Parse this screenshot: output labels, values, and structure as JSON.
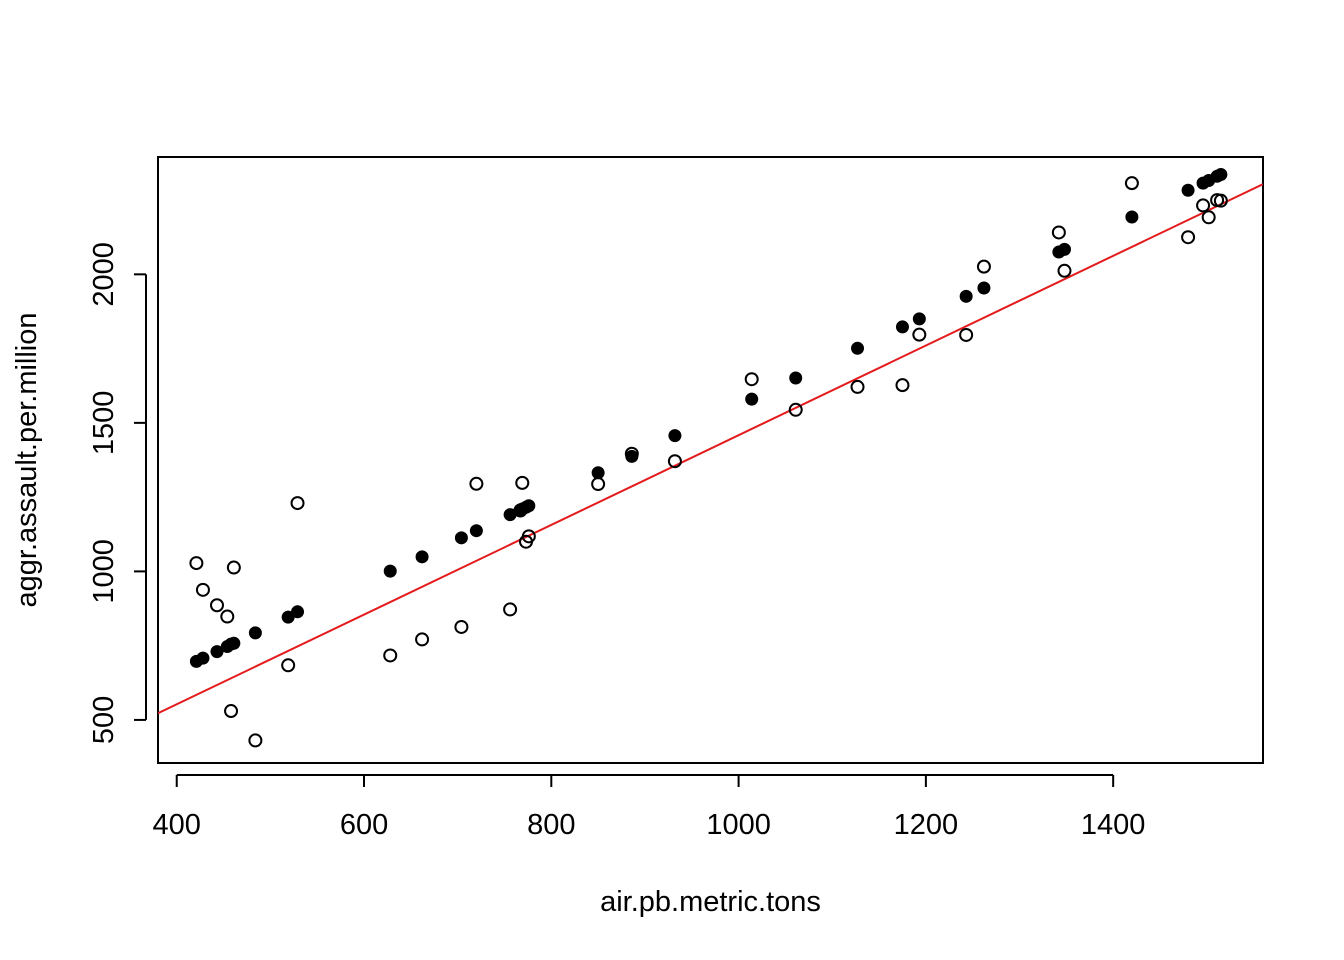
{
  "chart_data": {
    "type": "scatter",
    "title": "",
    "xlabel": "air.pb.metric.tons",
    "ylabel": "aggr.assault.per.million",
    "xlim": [
      380,
      1560
    ],
    "ylim": [
      355,
      2395
    ],
    "xticks": [
      "400",
      "600",
      "800",
      "1000",
      "1200",
      "1400"
    ],
    "yticks": [
      "500",
      "1000",
      "1500",
      "2000"
    ],
    "grid": false,
    "legend": "none",
    "colors": {
      "points": "#000000",
      "fit_line": "#e41a1c"
    },
    "fit_line": {
      "intercept": -51.2,
      "slope": 1.5096
    },
    "series": [
      {
        "marker": "open-circle",
        "x": [
          421,
          428,
          443,
          454,
          461,
          458,
          484,
          519,
          529,
          628,
          662,
          704,
          720,
          756,
          767,
          769,
          773,
          776,
          850,
          886,
          932,
          1014,
          1061,
          1127,
          1175,
          1193,
          1243,
          1262,
          1342,
          1348,
          1420,
          1480,
          1496,
          1502,
          1511,
          1515
        ],
        "y": [
          1028,
          938,
          886,
          848,
          1013,
          530,
          431,
          684,
          1230,
          717,
          771,
          813,
          1295,
          872,
          1205,
          1298,
          1100,
          1118,
          1294,
          1396,
          1371,
          1647,
          1544,
          1621,
          1627,
          1797,
          1796,
          2026,
          2141,
          2012,
          2307,
          2125,
          2232,
          2192,
          2250,
          2248
        ]
      },
      {
        "marker": "filled-circle",
        "x": [
          421,
          428,
          443,
          454,
          458,
          461,
          484,
          519,
          529,
          628,
          662,
          704,
          720,
          756,
          767,
          769,
          773,
          776,
          850,
          886,
          932,
          1014,
          1061,
          1127,
          1175,
          1193,
          1243,
          1262,
          1342,
          1348,
          1420,
          1480,
          1496,
          1502,
          1511,
          1515
        ],
        "y": [
          697,
          708,
          730,
          747,
          755,
          758,
          793,
          846,
          864,
          1001,
          1049,
          1113,
          1137,
          1191,
          1207,
          1210,
          1216,
          1221,
          1332,
          1387,
          1457,
          1580,
          1651,
          1751,
          1823,
          1850,
          1926,
          1954,
          2075,
          2084,
          2193,
          2283,
          2307,
          2316,
          2330,
          2336
        ]
      }
    ]
  }
}
